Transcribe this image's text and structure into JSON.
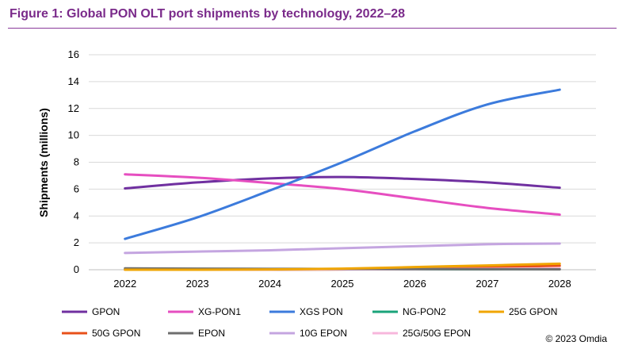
{
  "figure": {
    "title": "Figure 1: Global PON OLT port shipments by technology, 2022–28",
    "credit": "© 2023 Omdia"
  },
  "chart_data": {
    "type": "line",
    "title": "Figure 1: Global PON OLT port shipments by technology, 2022–28",
    "xlabel": "",
    "ylabel": "Shipments (millions)",
    "x": [
      "2022",
      "2023",
      "2024",
      "2025",
      "2026",
      "2027",
      "2028"
    ],
    "ylim": [
      0,
      16
    ],
    "yticks": [
      0,
      2,
      4,
      6,
      8,
      10,
      12,
      14,
      16
    ],
    "grid": true,
    "legend_position": "bottom",
    "series": [
      {
        "name": "GPON",
        "color": "#7030a0",
        "values": [
          6.05,
          6.5,
          6.8,
          6.9,
          6.75,
          6.5,
          6.1
        ]
      },
      {
        "name": "XG-PON1",
        "color": "#e64ec0",
        "values": [
          7.1,
          6.85,
          6.45,
          6.0,
          5.3,
          4.6,
          4.1
        ]
      },
      {
        "name": "XGS PON",
        "color": "#3c7bdc",
        "values": [
          2.3,
          3.9,
          5.9,
          8.0,
          10.3,
          12.3,
          13.4
        ]
      },
      {
        "name": "NG-PON2",
        "color": "#1aa37a",
        "values": [
          0.02,
          0.02,
          0.02,
          0.03,
          0.03,
          0.04,
          0.05
        ]
      },
      {
        "name": "25G GPON",
        "color": "#f0a500",
        "values": [
          0.0,
          0.0,
          0.02,
          0.08,
          0.2,
          0.32,
          0.45
        ]
      },
      {
        "name": "50G GPON",
        "color": "#e8501a",
        "values": [
          0.0,
          0.0,
          0.0,
          0.02,
          0.08,
          0.18,
          0.3
        ]
      },
      {
        "name": "EPON",
        "color": "#6e6e6e",
        "values": [
          0.1,
          0.08,
          0.07,
          0.06,
          0.05,
          0.04,
          0.03
        ]
      },
      {
        "name": "10G EPON",
        "color": "#c4a5e0",
        "values": [
          1.25,
          1.35,
          1.45,
          1.6,
          1.75,
          1.9,
          1.95
        ]
      },
      {
        "name": "25G/50G EPON",
        "color": "#f7b7dc",
        "values": [
          0.0,
          0.0,
          0.01,
          0.02,
          0.04,
          0.07,
          0.1
        ]
      }
    ]
  }
}
